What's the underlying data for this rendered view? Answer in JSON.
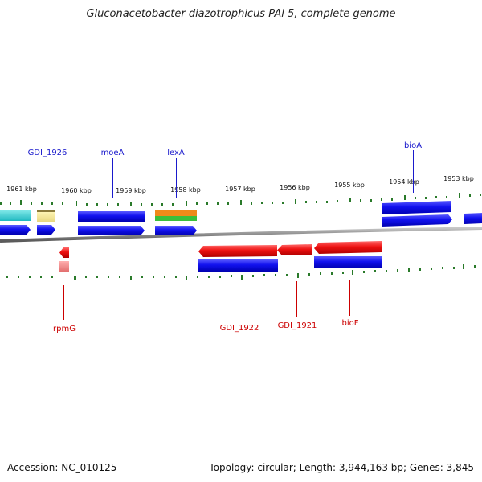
{
  "title": "Gluconacetobacter diazotrophicus PAl 5, complete genome",
  "footer": {
    "accession": "Accession: NC_010125",
    "summary": "Topology: circular; Length: 3,944,163 bp; Genes: 3,845"
  },
  "colors": {
    "top_label": "#1a1acc",
    "bottom_label": "#cc0000",
    "backbone": "#8a8a8a",
    "ticks": "#2a7a2a",
    "blue_gene": "#1111ee",
    "red_gene": "#ee1111"
  },
  "kbp_labels": [
    "1961 kbp",
    "1960 kbp",
    "1959 kbp",
    "1958 kbp",
    "1957 kbp",
    "1956 kbp",
    "1955 kbp",
    "1954 kbp",
    "1953 kbp"
  ],
  "top_gene_labels": [
    "GDI_1926",
    "moeA",
    "lexA",
    "bioA"
  ],
  "bottom_gene_labels": [
    "rpmG",
    "GDI_1922",
    "GDI_1921",
    "bioF"
  ]
}
